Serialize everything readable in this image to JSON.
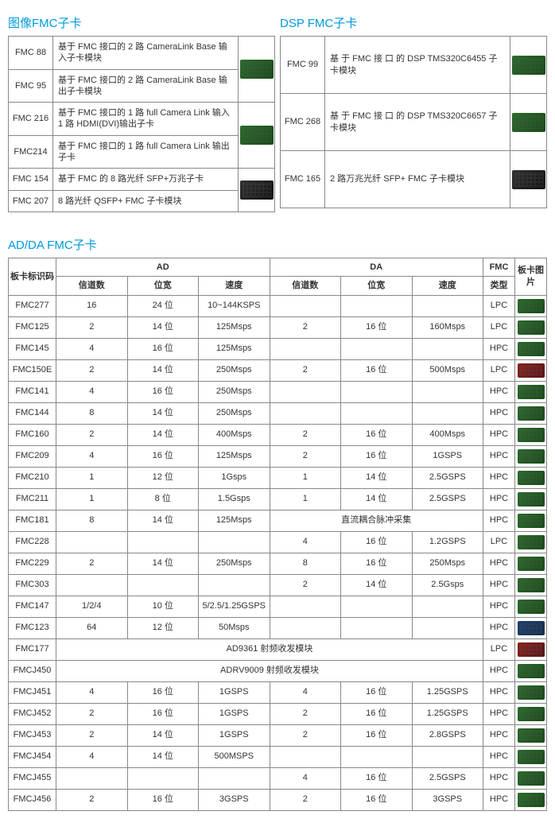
{
  "titles": {
    "image_fmc": "图像FMC子卡",
    "dsp_fmc": "DSP FMC子卡",
    "adda_fmc": "AD/DA FMC子卡"
  },
  "left_table": [
    {
      "code": "FMC 88",
      "desc": "基于 FMC 接口的 2 路 CameraLink Base 输入子卡模块",
      "pcb": "pcb"
    },
    {
      "code": "FMC 95",
      "desc": "基于 FMC 接口的 2 路 CameraLink Base 输出子卡模块",
      "pcb": "pcb"
    },
    {
      "code": "FMC 216",
      "desc": "基于 FMC 接口的 1 路 full Camera Link 输入  1 路 HDMI(DVI)输出子卡",
      "pcb": "pcb"
    },
    {
      "code": "FMC214",
      "desc": "基于 FMC 接口的 1 路 full Camera Link 输出子卡",
      "pcb": "pcb"
    },
    {
      "code": "FMC 154",
      "desc": "基于 FMC 的 8 路光纤 SFP+万兆子卡",
      "pcb": "pcb dark"
    },
    {
      "code": "FMC 207",
      "desc": "8 路光纤 QSFP+ FMC 子卡模块",
      "pcb": "pcb"
    }
  ],
  "right_table": [
    {
      "code": "FMC 99",
      "desc": "基 于  FMC  接 口 的  DSP TMS320C6455 子卡模块",
      "pcb": "pcb"
    },
    {
      "code": "FMC 268",
      "desc": "基 于  FMC  接 口 的  DSP TMS320C6657 子卡模块",
      "pcb": "pcb"
    },
    {
      "code": "FMC 165",
      "desc": "2 路万兆光纤 SFP+ FMC 子卡模块",
      "pcb": "pcb dark"
    }
  ],
  "adda_headers": {
    "code": "板卡标识码",
    "ad": "AD",
    "da": "DA",
    "fmc": "FMC",
    "img": "板卡图片",
    "ch": "信道数",
    "bits": "位宽",
    "speed": "速度",
    "type": "类型"
  },
  "adda_rows": [
    {
      "code": "FMC277",
      "ad_ch": "16",
      "ad_bits": "24 位",
      "ad_sp": "10~144KSPS",
      "da_ch": "",
      "da_bits": "",
      "da_sp": "",
      "fmc": "LPC",
      "pcb": "pcb"
    },
    {
      "code": "FMC125",
      "ad_ch": "2",
      "ad_bits": "14 位",
      "ad_sp": "125Msps",
      "da_ch": "2",
      "da_bits": "16 位",
      "da_sp": "160Msps",
      "fmc": "LPC",
      "pcb": "pcb"
    },
    {
      "code": "FMC145",
      "ad_ch": "4",
      "ad_bits": "16 位",
      "ad_sp": "125Msps",
      "da_ch": "",
      "da_bits": "",
      "da_sp": "",
      "fmc": "HPC",
      "pcb": "pcb"
    },
    {
      "code": "FMC150E",
      "ad_ch": "2",
      "ad_bits": "14 位",
      "ad_sp": "250Msps",
      "da_ch": "2",
      "da_bits": "16 位",
      "da_sp": "500Msps",
      "fmc": "LPC",
      "pcb": "pcb red"
    },
    {
      "code": "FMC141",
      "ad_ch": "4",
      "ad_bits": "16 位",
      "ad_sp": "250Msps",
      "da_ch": "",
      "da_bits": "",
      "da_sp": "",
      "fmc": "HPC",
      "pcb": "pcb"
    },
    {
      "code": "FMC144",
      "ad_ch": "8",
      "ad_bits": "14 位",
      "ad_sp": "250Msps",
      "da_ch": "",
      "da_bits": "",
      "da_sp": "",
      "fmc": "HPC",
      "pcb": "pcb"
    },
    {
      "code": "FMC160",
      "ad_ch": "2",
      "ad_bits": "14 位",
      "ad_sp": "400Msps",
      "da_ch": "2",
      "da_bits": "16 位",
      "da_sp": "400Msps",
      "fmc": "HPC",
      "pcb": "pcb"
    },
    {
      "code": "FMC209",
      "ad_ch": "4",
      "ad_bits": "16 位",
      "ad_sp": "125Msps",
      "da_ch": "2",
      "da_bits": "16 位",
      "da_sp": "1GSPS",
      "fmc": "HPC",
      "pcb": "pcb"
    },
    {
      "code": "FMC210",
      "ad_ch": "1",
      "ad_bits": "12 位",
      "ad_sp": "1Gsps",
      "da_ch": "1",
      "da_bits": "14 位",
      "da_sp": "2.5GSPS",
      "fmc": "HPC",
      "pcb": "pcb"
    },
    {
      "code": "FMC211",
      "ad_ch": "1",
      "ad_bits": "8 位",
      "ad_sp": "1.5Gsps",
      "da_ch": "1",
      "da_bits": "14 位",
      "da_sp": "2.5GSPS",
      "fmc": "HPC",
      "pcb": "pcb"
    },
    {
      "code": "FMC181",
      "ad_ch": "8",
      "ad_bits": "14 位",
      "ad_sp": "125Msps",
      "span": "直流耦合脉冲采集",
      "fmc": "HPC",
      "pcb": "pcb"
    },
    {
      "code": "FMC228",
      "ad_ch": "",
      "ad_bits": "",
      "ad_sp": "",
      "da_ch": "4",
      "da_bits": "16 位",
      "da_sp": "1.2GSPS",
      "fmc": "LPC",
      "pcb": "pcb"
    },
    {
      "code": "FMC229",
      "ad_ch": "2",
      "ad_bits": "14 位",
      "ad_sp": "250Msps",
      "da_ch": "8",
      "da_bits": "16 位",
      "da_sp": "250Msps",
      "fmc": "HPC",
      "pcb": "pcb"
    },
    {
      "code": "FMC303",
      "ad_ch": "",
      "ad_bits": "",
      "ad_sp": "",
      "da_ch": "2",
      "da_bits": "14 位",
      "da_sp": "2.5Gsps",
      "fmc": "HPC",
      "pcb": "pcb"
    },
    {
      "code": "FMC147",
      "ad_ch": "1/2/4",
      "ad_bits": "10 位",
      "ad_sp": "5/2.5/1.25GSPS",
      "da_ch": "",
      "da_bits": "",
      "da_sp": "",
      "fmc": "HPC",
      "pcb": "pcb"
    },
    {
      "code": "FMC123",
      "ad_ch": "64",
      "ad_bits": "12 位",
      "ad_sp": "50Msps",
      "da_ch": "",
      "da_bits": "",
      "da_sp": "",
      "fmc": "HPC",
      "pcb": "pcb blue"
    },
    {
      "code": "FMC177",
      "fullspan": "AD9361 射频收发模块",
      "fmc": "LPC",
      "pcb": "pcb red"
    },
    {
      "code": "FMCJ450",
      "fullspan": "ADRV9009 射频收发模块",
      "fmc": "HPC",
      "pcb": "pcb"
    },
    {
      "code": "FMCJ451",
      "ad_ch": "4",
      "ad_bits": "16 位",
      "ad_sp": "1GSPS",
      "da_ch": "4",
      "da_bits": "16 位",
      "da_sp": "1.25GSPS",
      "fmc": "HPC",
      "pcb": "pcb"
    },
    {
      "code": "FMCJ452",
      "ad_ch": "2",
      "ad_bits": "16 位",
      "ad_sp": "1GSPS",
      "da_ch": "2",
      "da_bits": "16 位",
      "da_sp": "1.25GSPS",
      "fmc": "HPC",
      "pcb": "pcb"
    },
    {
      "code": "FMCJ453",
      "ad_ch": "2",
      "ad_bits": "14 位",
      "ad_sp": "1GSPS",
      "da_ch": "2",
      "da_bits": "16 位",
      "da_sp": "2.8GSPS",
      "fmc": "HPC",
      "pcb": "pcb"
    },
    {
      "code": "FMCJ454",
      "ad_ch": "4",
      "ad_bits": "14 位",
      "ad_sp": "500MSPS",
      "da_ch": "",
      "da_bits": "",
      "da_sp": "",
      "fmc": "HPC",
      "pcb": "pcb"
    },
    {
      "code": "FMCJ455",
      "ad_ch": "",
      "ad_bits": "",
      "ad_sp": "",
      "da_ch": "4",
      "da_bits": "16 位",
      "da_sp": "2.5GSPS",
      "fmc": "HPC",
      "pcb": "pcb"
    },
    {
      "code": "FMCJ456",
      "ad_ch": "2",
      "ad_bits": "16 位",
      "ad_sp": "3GSPS",
      "da_ch": "2",
      "da_bits": "16 位",
      "da_sp": "3GSPS",
      "fmc": "HPC",
      "pcb": "pcb"
    }
  ]
}
